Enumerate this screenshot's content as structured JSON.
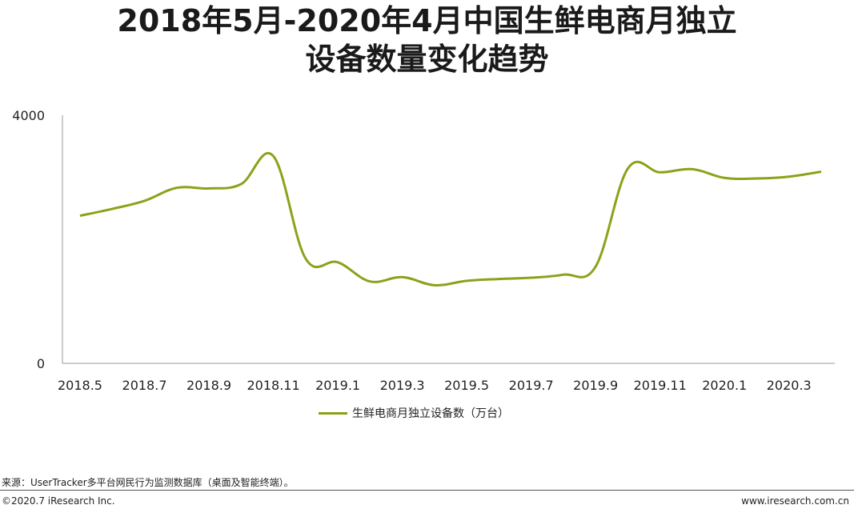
{
  "chart_data": {
    "type": "line",
    "title_line1": "2018年5月-2020年4月中国生鲜电商月独立",
    "title_line2": "设备数量变化趋势",
    "ylim": [
      0,
      4000
    ],
    "y_tick_labels": [
      "4000",
      "0"
    ],
    "y_tick_values": [
      4000,
      0
    ],
    "x_tick_labels": [
      "2018.5",
      "2018.7",
      "2018.9",
      "2018.11",
      "2019.1",
      "2019.3",
      "2019.5",
      "2019.7",
      "2019.9",
      "2019.11",
      "2020.1",
      "2020.3"
    ],
    "categories": [
      "2018.5",
      "2018.6",
      "2018.7",
      "2018.8",
      "2018.9",
      "2018.10",
      "2018.11",
      "2018.12",
      "2019.1",
      "2019.2",
      "2019.3",
      "2019.4",
      "2019.5",
      "2019.6",
      "2019.7",
      "2019.8",
      "2019.9",
      "2019.10",
      "2019.11",
      "2019.12",
      "2020.1",
      "2020.2",
      "2020.3",
      "2020.4"
    ],
    "series": [
      {
        "name": "生鲜电商月独立设备数（万台）",
        "color": "#8aa31a",
        "values": [
          2380,
          2490,
          2620,
          2830,
          2820,
          2890,
          3340,
          1690,
          1630,
          1320,
          1390,
          1260,
          1330,
          1360,
          1380,
          1430,
          1560,
          3140,
          3080,
          3130,
          2990,
          2980,
          3010,
          3090
        ]
      }
    ],
    "legend_position": "bottom",
    "grid": false
  },
  "footer": {
    "source": "来源：UserTracker多平台网民行为监测数据库（桌面及智能终端）。",
    "copyright": "©2020.7 iResearch Inc.",
    "website": "www.iresearch.com.cn"
  }
}
